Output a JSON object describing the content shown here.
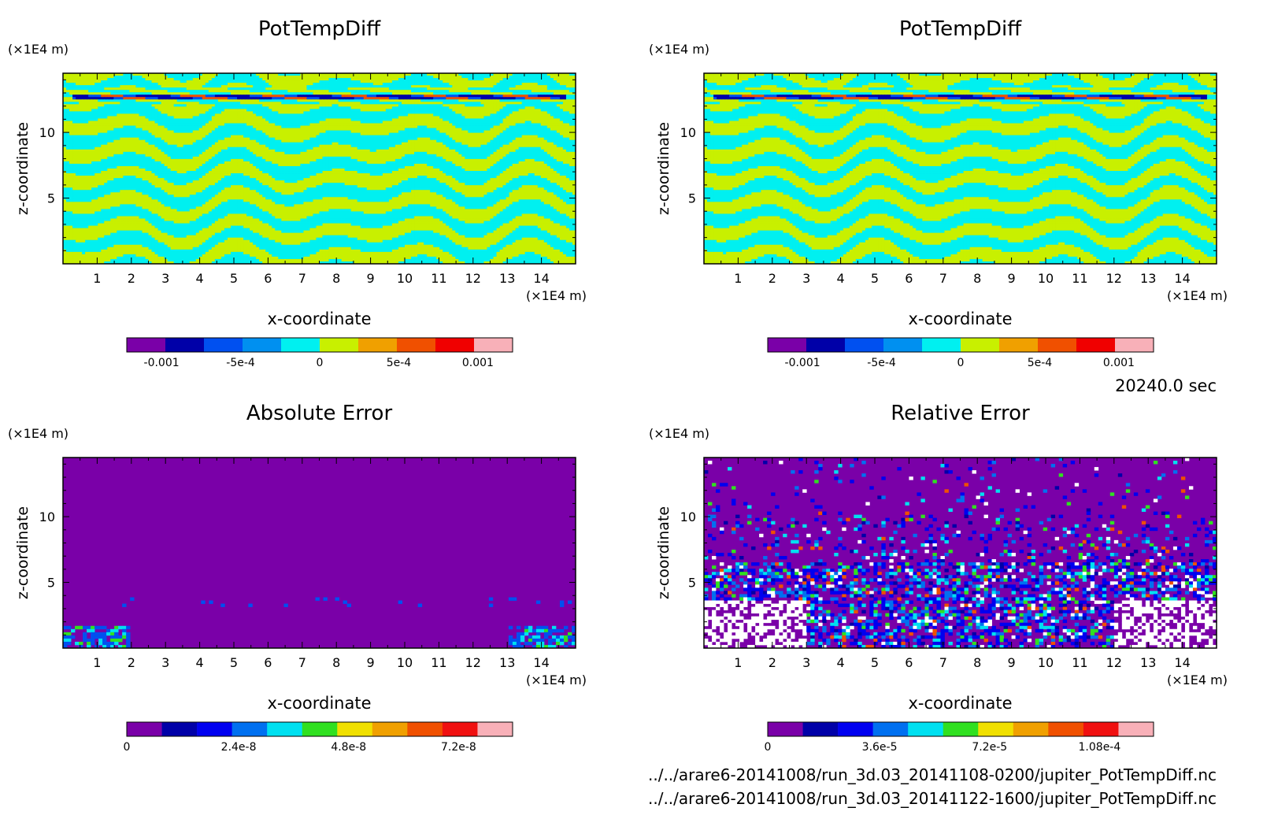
{
  "figure": {
    "timestamp": "20240.0 sec",
    "footer": [
      "../../arare6-20141008/run_3d.03_20141108-0200/jupiter_PotTempDiff.nc",
      "../../arare6-20141008/run_3d.03_20141122-1600/jupiter_PotTempDiff.nc"
    ]
  },
  "chart_data": [
    {
      "type": "heatmap",
      "id": "tl",
      "title": "PotTempDiff",
      "xlabel": "x-coordinate",
      "ylabel": "z-coordinate",
      "x_unit": "(×1E4 m)",
      "y_unit": "(×1E4 m)",
      "xlim": [
        0,
        15
      ],
      "ylim": [
        0,
        14.5
      ],
      "xticks": [
        1,
        2,
        3,
        4,
        5,
        6,
        7,
        8,
        9,
        10,
        11,
        12,
        13,
        14
      ],
      "yticks": [
        5,
        10
      ],
      "pattern": "banded",
      "colorbar": {
        "colors": [
          "#7a00a8",
          "#0000a8",
          "#0050f0",
          "#0090f0",
          "#00f0f0",
          "#c8f000",
          "#f0a000",
          "#f05000",
          "#f00000",
          "#f8b0b8"
        ],
        "ticks": [
          "-0.001",
          "-5e-4",
          "0",
          "5e-4",
          "0.001"
        ],
        "tick_pos": [
          0.09,
          0.295,
          0.5,
          0.705,
          0.91
        ]
      }
    },
    {
      "type": "heatmap",
      "id": "tr",
      "title": "PotTempDiff",
      "xlabel": "x-coordinate",
      "ylabel": "z-coordinate",
      "x_unit": "(×1E4 m)",
      "y_unit": "(×1E4 m)",
      "xlim": [
        0,
        15
      ],
      "ylim": [
        0,
        14.5
      ],
      "xticks": [
        1,
        2,
        3,
        4,
        5,
        6,
        7,
        8,
        9,
        10,
        11,
        12,
        13,
        14
      ],
      "yticks": [
        5,
        10
      ],
      "pattern": "banded",
      "colorbar": {
        "colors": [
          "#7a00a8",
          "#0000a8",
          "#0050f0",
          "#0090f0",
          "#00f0f0",
          "#c8f000",
          "#f0a000",
          "#f05000",
          "#f00000",
          "#f8b0b8"
        ],
        "ticks": [
          "-0.001",
          "-5e-4",
          "0",
          "5e-4",
          "0.001"
        ],
        "tick_pos": [
          0.09,
          0.295,
          0.5,
          0.705,
          0.91
        ]
      }
    },
    {
      "type": "heatmap",
      "id": "bl",
      "title": "Absolute Error",
      "xlabel": "x-coordinate",
      "ylabel": "z-coordinate",
      "x_unit": "(×1E4 m)",
      "y_unit": "(×1E4 m)",
      "xlim": [
        0,
        15
      ],
      "ylim": [
        0,
        14.5
      ],
      "xticks": [
        1,
        2,
        3,
        4,
        5,
        6,
        7,
        8,
        9,
        10,
        11,
        12,
        13,
        14
      ],
      "yticks": [
        5,
        10
      ],
      "pattern": "sparse",
      "colorbar": {
        "colors": [
          "#7a00a8",
          "#0000a8",
          "#0000f0",
          "#0070f0",
          "#00e0f0",
          "#30e020",
          "#f0e000",
          "#f0a000",
          "#f05000",
          "#f01010",
          "#f8b0b8"
        ],
        "ticks": [
          "0",
          "2.4e-8",
          "4.8e-8",
          "7.2e-8"
        ],
        "tick_pos": [
          0.0,
          0.29,
          0.575,
          0.86
        ]
      }
    },
    {
      "type": "heatmap",
      "id": "br",
      "title": "Relative Error",
      "xlabel": "x-coordinate",
      "ylabel": "z-coordinate",
      "x_unit": "(×1E4 m)",
      "y_unit": "(×1E4 m)",
      "xlim": [
        0,
        15
      ],
      "ylim": [
        0,
        14.5
      ],
      "xticks": [
        1,
        2,
        3,
        4,
        5,
        6,
        7,
        8,
        9,
        10,
        11,
        12,
        13,
        14
      ],
      "yticks": [
        5,
        10
      ],
      "pattern": "noisy",
      "colorbar": {
        "colors": [
          "#7a00a8",
          "#0000a8",
          "#0000f0",
          "#0070f0",
          "#00e0f0",
          "#30e020",
          "#f0e000",
          "#f0a000",
          "#f05000",
          "#f01010",
          "#f8b0b8"
        ],
        "ticks": [
          "0",
          "3.6e-5",
          "7.2e-5",
          "1.08e-4"
        ],
        "tick_pos": [
          0.0,
          0.29,
          0.575,
          0.86
        ]
      }
    }
  ]
}
